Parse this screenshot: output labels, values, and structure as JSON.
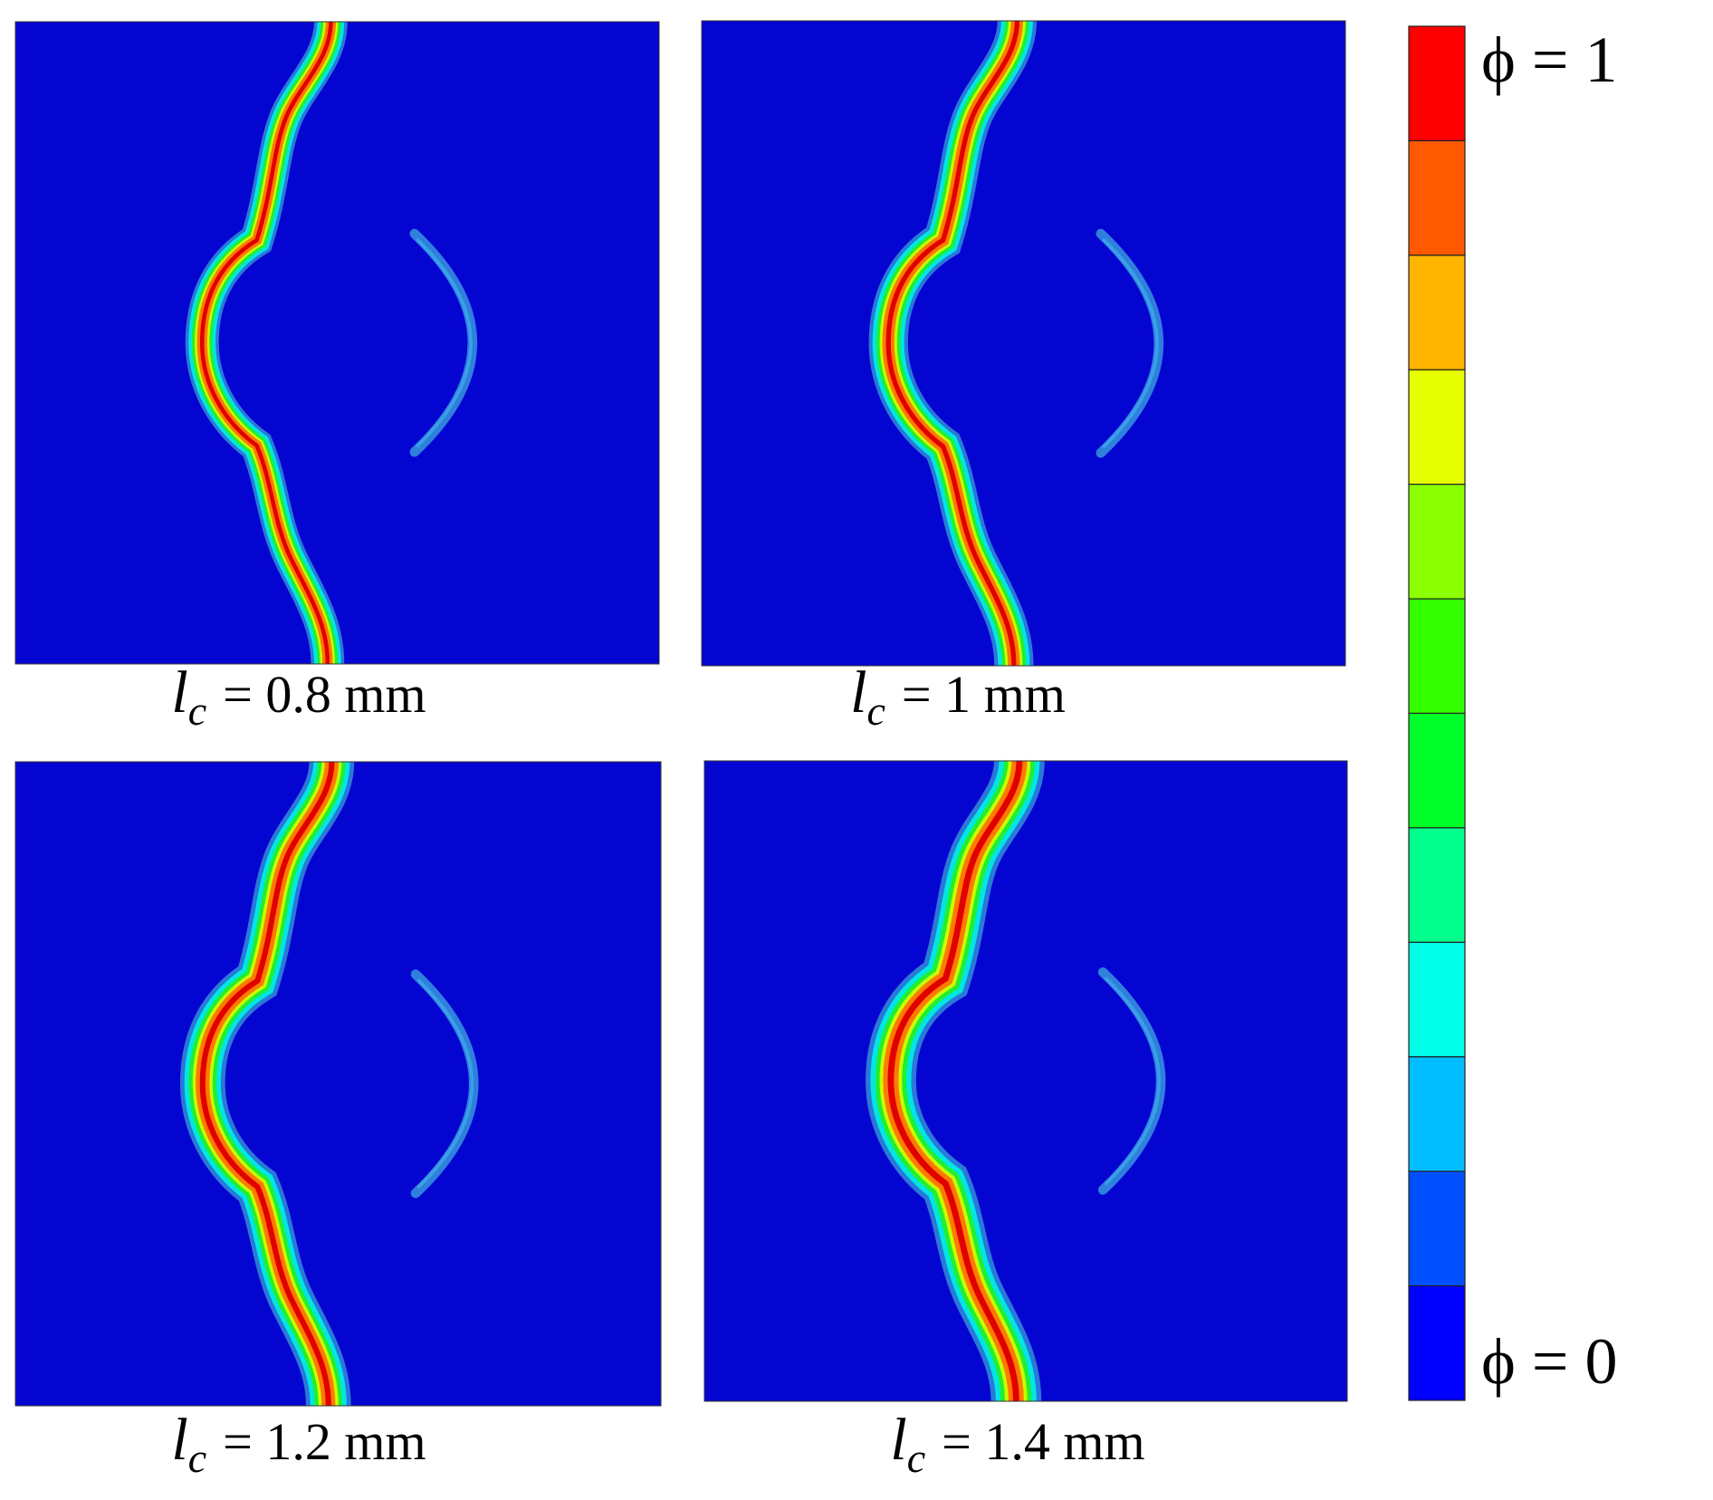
{
  "figure": {
    "panels": [
      {
        "symbol": "l",
        "subscript": "c",
        "label": "= 0.8 mm"
      },
      {
        "symbol": "l",
        "subscript": "c",
        "label": "= 1 mm"
      },
      {
        "symbol": "l",
        "subscript": "c",
        "label": "= 1.2 mm"
      },
      {
        "symbol": "l",
        "subscript": "c",
        "label": "= 1.4 mm"
      }
    ],
    "colorbar": {
      "top_label": "ϕ = 1",
      "bottom_label": "ϕ = 0",
      "colors": [
        "#ff0000",
        "#ff5a00",
        "#ffb400",
        "#e6ff00",
        "#8cff00",
        "#32ff00",
        "#00ff28",
        "#00ff8c",
        "#00ffe6",
        "#00beff",
        "#0050ff",
        "#0000ff"
      ]
    }
  }
}
